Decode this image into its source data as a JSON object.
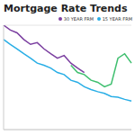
{
  "chart_data": {
    "type": "line",
    "title": "Mortgage Rate Trends",
    "categories": [
      null,
      null,
      null,
      null,
      null,
      null,
      null,
      null,
      null,
      null,
      null,
      null,
      null,
      null,
      null,
      null,
      null,
      null,
      null,
      null
    ],
    "series": [
      {
        "name": "30 YEAR FRM",
        "color": "#7b3fa0",
        "values": [
          5.0,
          4.86,
          4.78,
          4.59,
          4.45,
          4.5,
          4.32,
          4.18,
          4.05,
          4.13,
          3.91,
          3.77,
          3.64,
          null,
          null,
          null,
          null,
          null,
          null,
          null
        ]
      },
      {
        "color": "#3fbf6f",
        "values": [
          null,
          null,
          null,
          null,
          null,
          null,
          null,
          null,
          null,
          null,
          3.85,
          3.64,
          3.58,
          3.42,
          3.36,
          3.23,
          3.31,
          4.05,
          4.18,
          3.91
        ]
      },
      {
        "name": "15 YEAR FRM",
        "color": "#29aee6",
        "values": [
          4.59,
          4.45,
          4.32,
          4.18,
          4.05,
          3.91,
          3.85,
          3.77,
          3.64,
          3.58,
          3.42,
          3.36,
          3.23,
          3.15,
          3.09,
          3.04,
          2.95,
          2.93,
          2.87,
          2.82
        ]
      }
    ],
    "ylim": [
      2,
      5
    ],
    "yticks": [
      2,
      3,
      4,
      5
    ],
    "grid": true,
    "legend": "top-right",
    "tick_labels": false
  }
}
